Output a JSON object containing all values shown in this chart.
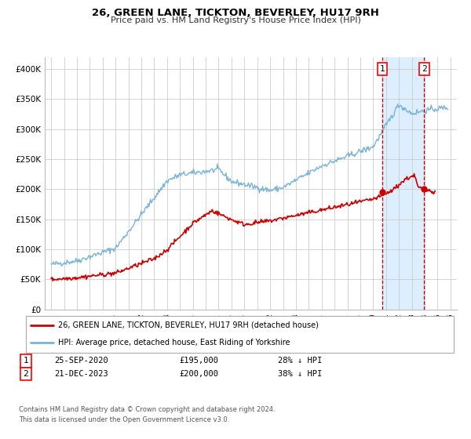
{
  "title": "26, GREEN LANE, TICKTON, BEVERLEY, HU17 9RH",
  "subtitle": "Price paid vs. HM Land Registry's House Price Index (HPI)",
  "legend_entry1": "26, GREEN LANE, TICKTON, BEVERLEY, HU17 9RH (detached house)",
  "legend_entry2": "HPI: Average price, detached house, East Riding of Yorkshire",
  "footnote1": "Contains HM Land Registry data © Crown copyright and database right 2024.",
  "footnote2": "This data is licensed under the Open Government Licence v3.0.",
  "sale1_date": "25-SEP-2020",
  "sale1_price": "£195,000",
  "sale1_hpi": "28% ↓ HPI",
  "sale2_date": "21-DEC-2023",
  "sale2_price": "£200,000",
  "sale2_hpi": "38% ↓ HPI",
  "sale1_x": 2020.73,
  "sale2_x": 2023.97,
  "sale1_y": 195000,
  "sale2_y": 200000,
  "hpi_color": "#7ab4d8",
  "price_color": "#cc0000",
  "vline_color": "#cc0000",
  "shade_color": "#ddeeff",
  "bg_color": "#ffffff",
  "grid_color": "#cccccc",
  "ylim_min": 0,
  "ylim_max": 420000,
  "xlim_min": 1994.5,
  "xlim_max": 2026.5,
  "yticks": [
    0,
    50000,
    100000,
    150000,
    200000,
    250000,
    300000,
    350000,
    400000
  ],
  "ytick_labels": [
    "£0",
    "£50K",
    "£100K",
    "£150K",
    "£200K",
    "£250K",
    "£300K",
    "£350K",
    "£400K"
  ],
  "xticks": [
    1995,
    1996,
    1997,
    1998,
    1999,
    2000,
    2001,
    2002,
    2003,
    2004,
    2005,
    2006,
    2007,
    2008,
    2009,
    2010,
    2011,
    2012,
    2013,
    2014,
    2015,
    2016,
    2017,
    2018,
    2019,
    2020,
    2021,
    2022,
    2023,
    2024,
    2025,
    2026
  ]
}
